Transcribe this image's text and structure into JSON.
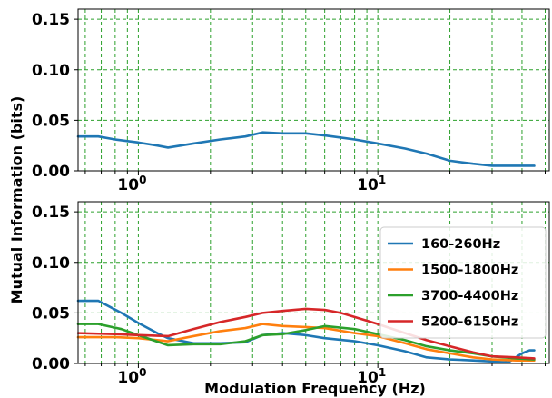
{
  "chart_data": {
    "type": "line",
    "ylabel": "Mutual Information (bits)",
    "xlabel": "Modulation Frequency (Hz)",
    "x_scale": "log",
    "xlim": [
      0.56,
      52
    ],
    "ylim": [
      0,
      0.16
    ],
    "grid": true,
    "grid_style": "dashed",
    "grid_color": "#2ca02c",
    "x_ticks": [
      {
        "value": 1,
        "base": "10",
        "exp": "0"
      },
      {
        "value": 10,
        "base": "10",
        "exp": "1"
      }
    ],
    "y_ticks": [
      "0.00",
      "0.05",
      "0.10",
      "0.15"
    ],
    "panels": [
      {
        "legend": null,
        "series": [
          {
            "name": "160-260Hz",
            "color": "#1f77b4",
            "x": [
              0.56,
              0.68,
              0.8,
              1.0,
              1.2,
              1.33,
              1.7,
              2.2,
              2.8,
              3.3,
              4.0,
              5.0,
              6.0,
              8.0,
              10,
              13,
              16,
              20,
              25,
              30,
              38,
              45
            ],
            "y": [
              0.034,
              0.034,
              0.031,
              0.028,
              0.025,
              0.023,
              0.027,
              0.031,
              0.034,
              0.038,
              0.037,
              0.037,
              0.035,
              0.031,
              0.027,
              0.022,
              0.017,
              0.01,
              0.007,
              0.005,
              0.005,
              0.005
            ]
          }
        ]
      },
      {
        "legend": "right",
        "series": [
          {
            "name": "160-260Hz",
            "color": "#1f77b4",
            "x": [
              0.56,
              0.68,
              0.85,
              1.0,
              1.2,
              1.33,
              1.7,
              2.2,
              2.8,
              3.3,
              4.0,
              5.0,
              6.0,
              8.0,
              10,
              13,
              16,
              20,
              25,
              30,
              35,
              40,
              43,
              45
            ],
            "y": [
              0.062,
              0.062,
              0.05,
              0.04,
              0.03,
              0.025,
              0.02,
              0.02,
              0.021,
              0.028,
              0.03,
              0.028,
              0.025,
              0.022,
              0.018,
              0.012,
              0.006,
              0.004,
              0.003,
              0.002,
              0.001,
              0.01,
              0.013,
              0.013
            ]
          },
          {
            "name": "1500-1800Hz",
            "color": "#ff7f0e",
            "x": [
              0.56,
              0.8,
              1.0,
              1.33,
              1.7,
              2.2,
              2.8,
              3.3,
              4.0,
              5.0,
              6.0,
              8.0,
              10,
              13,
              16,
              20,
              25,
              30,
              38,
              45
            ],
            "y": [
              0.026,
              0.026,
              0.025,
              0.022,
              0.027,
              0.032,
              0.035,
              0.039,
              0.037,
              0.036,
              0.035,
              0.03,
              0.027,
              0.02,
              0.014,
              0.01,
              0.006,
              0.004,
              0.003,
              0.003
            ]
          },
          {
            "name": "3700-4400Hz",
            "color": "#2ca02c",
            "x": [
              0.56,
              0.68,
              0.85,
              1.0,
              1.33,
              1.7,
              2.2,
              2.8,
              3.3,
              4.0,
              5.0,
              6.0,
              8.0,
              10,
              13,
              16,
              20,
              25,
              30,
              38,
              45
            ],
            "y": [
              0.039,
              0.039,
              0.034,
              0.028,
              0.018,
              0.019,
              0.019,
              0.022,
              0.028,
              0.029,
              0.033,
              0.037,
              0.034,
              0.029,
              0.023,
              0.017,
              0.013,
              0.01,
              0.007,
              0.005,
              0.004
            ]
          },
          {
            "name": "5200-6150Hz",
            "color": "#d62728",
            "x": [
              0.56,
              0.8,
              1.0,
              1.33,
              1.7,
              2.2,
              2.8,
              3.3,
              4.0,
              5.0,
              6.0,
              7.0,
              8.0,
              10,
              13,
              16,
              20,
              25,
              30,
              38,
              45
            ],
            "y": [
              0.03,
              0.029,
              0.028,
              0.027,
              0.034,
              0.041,
              0.046,
              0.05,
              0.052,
              0.054,
              0.053,
              0.05,
              0.046,
              0.039,
              0.03,
              0.023,
              0.017,
              0.011,
              0.007,
              0.006,
              0.005
            ]
          }
        ]
      }
    ]
  }
}
